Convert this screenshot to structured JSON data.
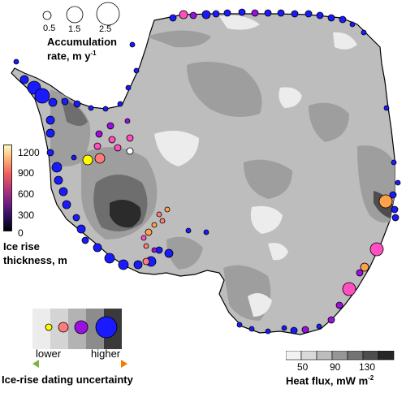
{
  "accumulation_legend": {
    "values": [
      "0.5",
      "1.5",
      "2.5"
    ],
    "title_line1": "Accumulation",
    "title_line2": "rate, m y",
    "title_sup": "-1"
  },
  "thickness_legend": {
    "ticks": [
      "1200",
      "900",
      "600",
      "300",
      "0"
    ],
    "title_line1": "Ice rise",
    "title_line2": "thickness, m",
    "colors": [
      "#000004",
      "#2c115f",
      "#721f81",
      "#b73779",
      "#f1605d",
      "#feb078",
      "#fcfdbf"
    ]
  },
  "heat_flux_legend": {
    "ticks": [
      "50",
      "90",
      "130"
    ],
    "title": "Heat flux, mW m",
    "title_sup": "-2",
    "colors": [
      "#f2f2f2",
      "#d9d9d9",
      "#bdbdbd",
      "#969696",
      "#737373",
      "#4d4d4d",
      "#262626"
    ]
  },
  "uncertainty_legend": {
    "lower": "lower",
    "higher": "higher",
    "title": "Ice-rise dating uncertainty",
    "arrow_colors": [
      "#7cb342",
      "#f57c00"
    ]
  },
  "colors": {
    "land_light": "#bdbdbd",
    "land_mid": "#9e9e9e",
    "land_dark": "#6e6e6e",
    "land_darkest": "#2b2b2b",
    "land_lightest": "#ececec",
    "ice_rise_blue": "#1a1aff",
    "ice_rise_purple": "#9a10e0",
    "ice_rise_pink": "#ff4fc1",
    "ice_rise_salmon": "#ff7c7c",
    "ice_rise_orange": "#ffa14a",
    "ice_rise_yellow": "#ffff00"
  }
}
